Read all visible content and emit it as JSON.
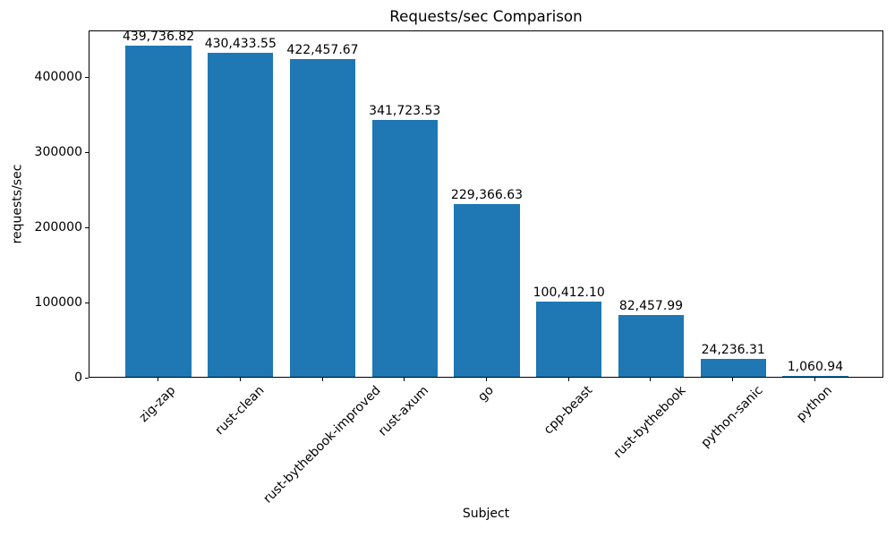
{
  "chart_data": {
    "type": "bar",
    "title": "Requests/sec Comparison",
    "xlabel": "Subject",
    "ylabel": "requests/sec",
    "categories": [
      "zig-zap",
      "rust-clean",
      "rust-bythebook-improved",
      "rust-axum",
      "go",
      "cpp-beast",
      "rust-bythebook",
      "python-sanic",
      "python"
    ],
    "values": [
      439736.82,
      430433.55,
      422457.67,
      341723.53,
      229366.63,
      100412.1,
      82457.99,
      24236.31,
      1060.94
    ],
    "value_labels": [
      "439,736.82",
      "430,433.55",
      "422,457.67",
      "341,723.53",
      "229,366.63",
      "100,412.10",
      "82,457.99",
      "24,236.31",
      "1,060.94"
    ],
    "y_ticks": [
      0,
      100000,
      200000,
      300000,
      400000
    ],
    "y_tick_labels": [
      "0",
      "100000",
      "200000",
      "300000",
      "400000"
    ],
    "ylim": [
      0,
      461723.66
    ],
    "xtick_rotation_deg": 45,
    "grid": false,
    "legend_position": "none",
    "bar_color": "#1f77b4",
    "text_color": "#000000",
    "background_color": "#ffffff"
  }
}
